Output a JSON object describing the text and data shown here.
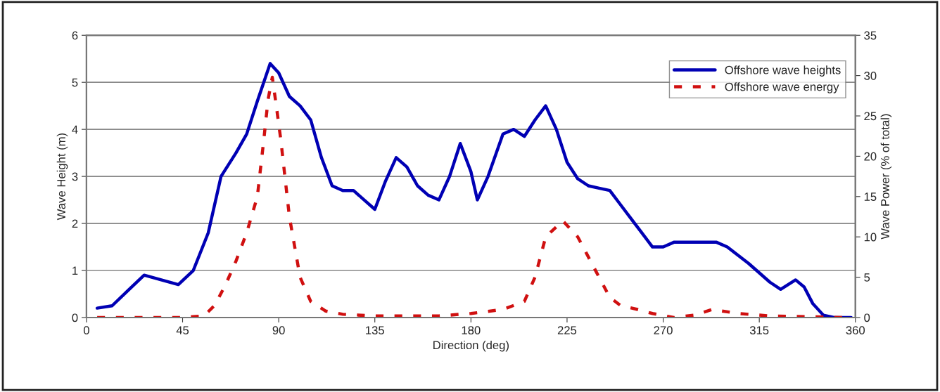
{
  "chart_data": {
    "type": "line",
    "xlabel": "Direction (deg)",
    "ylabel": "Wave Height (m)",
    "y2label": "Wave Power (% of total)",
    "xlim": [
      0,
      360
    ],
    "xticks": [
      0,
      45,
      90,
      135,
      180,
      225,
      270,
      315,
      360
    ],
    "ylim": [
      0,
      6
    ],
    "yticks": [
      0,
      1,
      2,
      3,
      4,
      5,
      6
    ],
    "y2lim": [
      0,
      35
    ],
    "y2ticks": [
      0,
      5,
      10,
      15,
      20,
      25,
      30,
      35
    ],
    "grid": "y",
    "legend": "top right",
    "series": [
      {
        "name": "Offshore wave heights",
        "color": "#0000b4",
        "line_style": "solid",
        "x": [
          5,
          12,
          20,
          27,
          35,
          43,
          50,
          57,
          63,
          70,
          75,
          80,
          86,
          90,
          95,
          100,
          105,
          110,
          115,
          120,
          125,
          130,
          135,
          140,
          145,
          150,
          155,
          160,
          165,
          170,
          175,
          180,
          183,
          188,
          195,
          200,
          205,
          210,
          215,
          220,
          225,
          230,
          235,
          240,
          245,
          250,
          255,
          260,
          265,
          270,
          275,
          285,
          295,
          300,
          310,
          320,
          325,
          332,
          336,
          340,
          345,
          350,
          358
        ],
        "values": [
          0.2,
          0.25,
          0.6,
          0.9,
          0.8,
          0.7,
          1.0,
          1.8,
          3.0,
          3.5,
          3.9,
          4.6,
          5.4,
          5.2,
          4.7,
          4.5,
          4.2,
          3.4,
          2.8,
          2.7,
          2.7,
          2.5,
          2.3,
          2.9,
          3.4,
          3.2,
          2.8,
          2.6,
          2.5,
          3.0,
          3.7,
          3.1,
          2.5,
          3.0,
          3.9,
          4.0,
          3.85,
          4.2,
          4.5,
          4.0,
          3.3,
          2.95,
          2.8,
          2.75,
          2.7,
          2.4,
          2.1,
          1.8,
          1.5,
          1.5,
          1.6,
          1.6,
          1.6,
          1.5,
          1.15,
          0.75,
          0.6,
          0.8,
          0.65,
          0.3,
          0.05,
          0,
          0
        ]
      },
      {
        "name": "Offshore wave energy",
        "color": "#d01010",
        "line_style": "dashed",
        "axis": "y2",
        "x": [
          5,
          15,
          30,
          45,
          55,
          60,
          65,
          70,
          75,
          80,
          83,
          85,
          87,
          89,
          91,
          95,
          100,
          105,
          112,
          120,
          135,
          150,
          165,
          180,
          195,
          205,
          210,
          215,
          223,
          230,
          238,
          245,
          250,
          258,
          265,
          275,
          285,
          293,
          305,
          320,
          340,
          355
        ],
        "values": [
          0,
          0,
          0,
          0,
          0.2,
          1.5,
          4,
          7,
          10.5,
          15,
          22,
          27,
          29.8,
          26,
          22,
          12.5,
          5,
          2,
          0.8,
          0.4,
          0.2,
          0.2,
          0.2,
          0.5,
          1,
          2,
          5,
          10,
          12,
          10,
          6,
          2.5,
          1.5,
          1,
          0.5,
          0,
          0.3,
          1,
          0.5,
          0.2,
          0.1,
          0
        ]
      }
    ]
  }
}
